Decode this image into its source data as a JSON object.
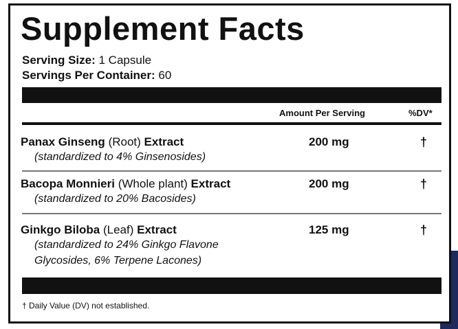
{
  "header": {
    "title": "Supplement Facts",
    "serving_size": {
      "label": "Serving Size:",
      "value": "1 Capsule"
    },
    "servings_per_container": {
      "label": "Servings Per Container:",
      "value": "60"
    }
  },
  "table": {
    "columns": [
      "Amount Per Serving",
      "%DV*"
    ],
    "rows": [
      {
        "name": [
          "Panax Ginseng",
          "(Root)",
          "Extract"
        ],
        "note": [
          "(standardized to 4% Ginsenosides)"
        ],
        "amount": "200 mg",
        "dv": "†"
      },
      {
        "name": [
          "Bacopa Monnieri",
          "(Whole plant)",
          "Extract"
        ],
        "note": [
          "(standardized to 20% Bacosides)"
        ],
        "amount": "200 mg",
        "dv": "†"
      },
      {
        "name": [
          "Ginkgo Biloba",
          "(Leaf)",
          "Extract"
        ],
        "note": [
          "(standardized to 24% Ginkgo Flavone",
          "Glycosides, 6% Terpene Lacones)"
        ],
        "amount": "125 mg",
        "dv": "†"
      }
    ]
  },
  "footnote": "† Daily Value (DV) not established."
}
